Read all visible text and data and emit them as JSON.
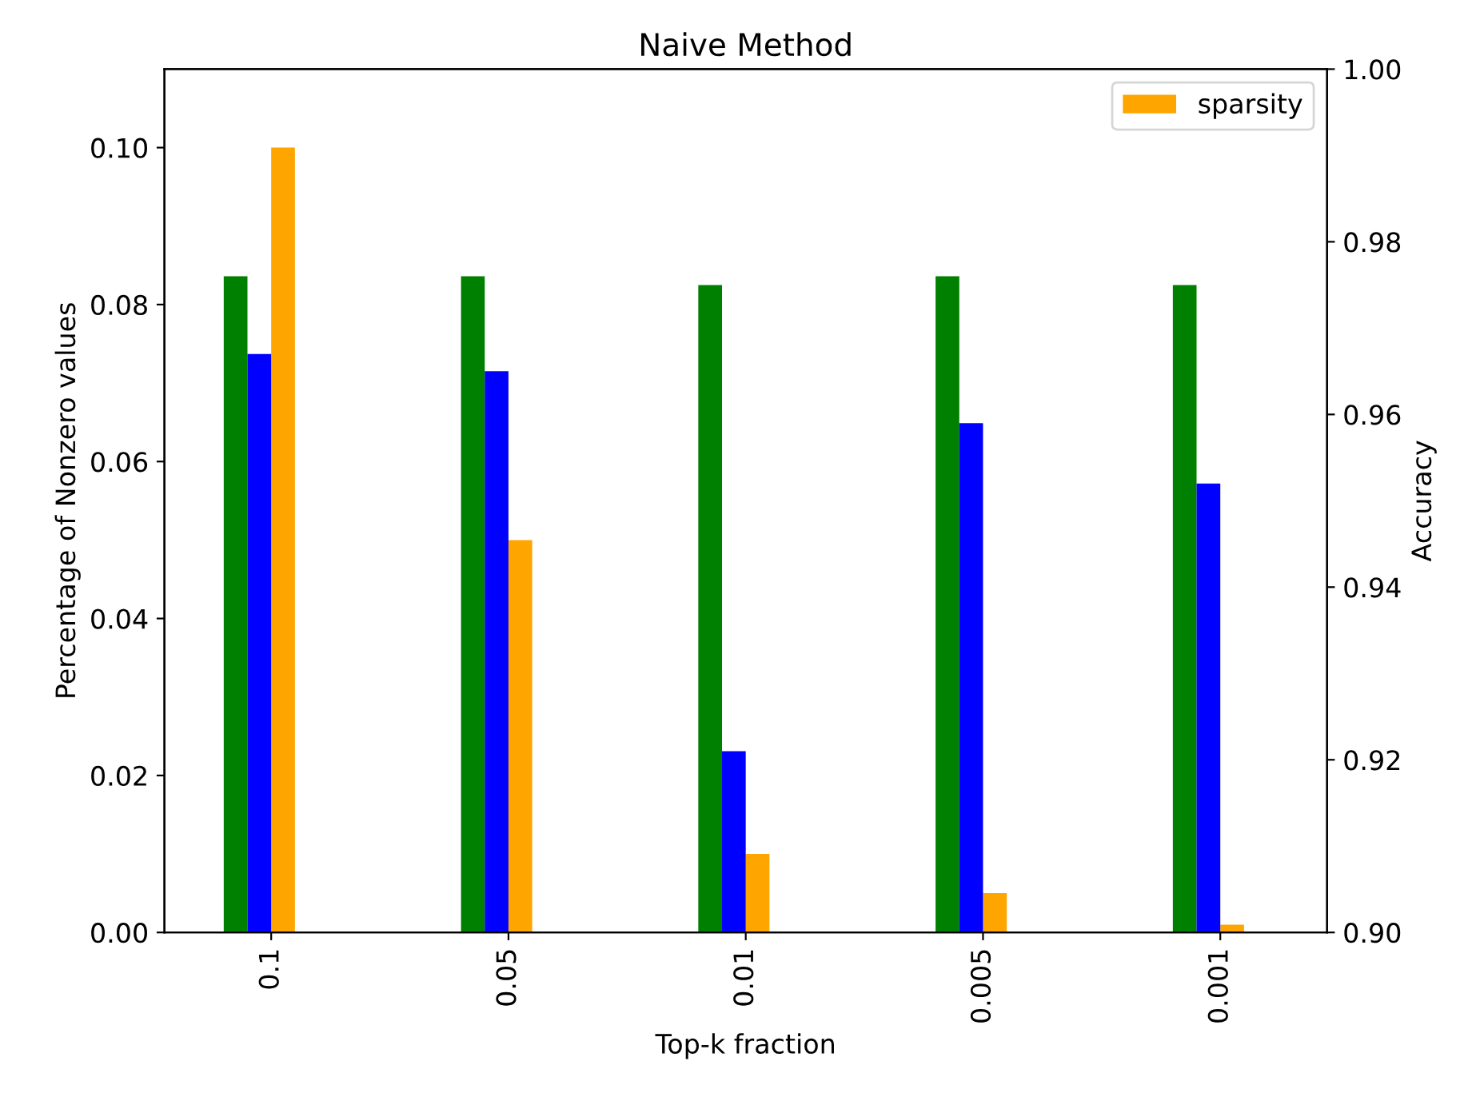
{
  "chart_data": {
    "type": "bar",
    "title": "Naive Method",
    "xlabel": "Top-k fraction",
    "ylabel": "Percentage of Nonzero values",
    "y2label": "Accuracy",
    "categories": [
      "0.1",
      "0.05",
      "0.01",
      "0.005",
      "0.001"
    ],
    "series": [
      {
        "color": "#008000",
        "axis": "y2",
        "values": [
          0.976,
          0.976,
          0.975,
          0.976,
          0.975
        ]
      },
      {
        "color": "#0000ff",
        "axis": "y2",
        "values": [
          0.967,
          0.965,
          0.921,
          0.959,
          0.952
        ]
      },
      {
        "name": "sparsity",
        "color": "#ffa500",
        "axis": "y",
        "values": [
          0.1,
          0.05,
          0.01,
          0.005,
          0.001
        ]
      }
    ],
    "ylim": [
      0,
      0.11
    ],
    "yticks": [
      {
        "value": 0,
        "label": "0.00"
      },
      {
        "value": 0.02,
        "label": "0.02"
      },
      {
        "value": 0.04,
        "label": "0.04"
      },
      {
        "value": 0.06,
        "label": "0.06"
      },
      {
        "value": 0.08,
        "label": "0.08"
      },
      {
        "value": 0.1,
        "label": "0.10"
      }
    ],
    "y2lim": [
      0.9,
      1.0
    ],
    "y2ticks": [
      {
        "value": 0.9,
        "label": "0.90"
      },
      {
        "value": 0.92,
        "label": "0.92"
      },
      {
        "value": 0.94,
        "label": "0.94"
      },
      {
        "value": 0.96,
        "label": "0.96"
      },
      {
        "value": 0.98,
        "label": "0.98"
      },
      {
        "value": 1.0,
        "label": "1.00"
      }
    ],
    "legend": "top right",
    "grid": false
  }
}
